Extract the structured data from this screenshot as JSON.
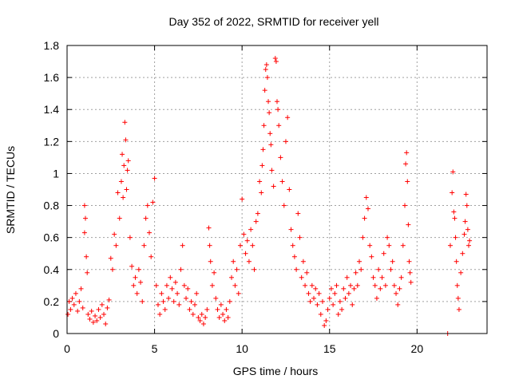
{
  "chart_data": {
    "type": "scatter",
    "title": "Day 352 of 2022, SRMTID for receiver yell",
    "xlabel": "GPS time / hours",
    "ylabel": "SRMTID / TECUs",
    "xlim": [
      0,
      24
    ],
    "ylim": [
      0,
      1.8
    ],
    "xticks": [
      0,
      5,
      10,
      15,
      20
    ],
    "xtick_labels": [
      "0",
      "5",
      "10",
      "15",
      "20"
    ],
    "yticks": [
      0,
      0.2,
      0.4,
      0.6,
      0.8,
      1.0,
      1.2,
      1.4,
      1.6,
      1.8
    ],
    "ytick_labels": [
      "0",
      "0.2",
      "0.4",
      "0.6",
      "0.8",
      "1",
      "1.2",
      "1.4",
      "1.6",
      "1.8"
    ],
    "grid": true,
    "marker": "+",
    "color": "#ff0000",
    "series": [
      {
        "name": "SRMTID",
        "points": [
          [
            0.05,
            0.12
          ],
          [
            0.12,
            0.2
          ],
          [
            0.2,
            0.15
          ],
          [
            0.3,
            0.22
          ],
          [
            0.4,
            0.18
          ],
          [
            0.5,
            0.25
          ],
          [
            0.6,
            0.14
          ],
          [
            0.7,
            0.2
          ],
          [
            0.8,
            0.28
          ],
          [
            0.9,
            0.16
          ],
          [
            1.0,
            0.63
          ],
          [
            1.0,
            0.8
          ],
          [
            1.05,
            0.72
          ],
          [
            1.1,
            0.48
          ],
          [
            1.15,
            0.38
          ],
          [
            1.2,
            0.12
          ],
          [
            1.3,
            0.09
          ],
          [
            1.4,
            0.14
          ],
          [
            1.5,
            0.07
          ],
          [
            1.6,
            0.11
          ],
          [
            1.7,
            0.08
          ],
          [
            1.8,
            0.15
          ],
          [
            1.9,
            0.1
          ],
          [
            2.0,
            0.18
          ],
          [
            2.1,
            0.12
          ],
          [
            2.2,
            0.06
          ],
          [
            2.3,
            0.16
          ],
          [
            2.4,
            0.21
          ],
          [
            2.5,
            0.47
          ],
          [
            2.6,
            0.4
          ],
          [
            2.7,
            0.62
          ],
          [
            2.8,
            0.55
          ],
          [
            2.9,
            0.88
          ],
          [
            3.0,
            0.72
          ],
          [
            3.1,
            0.95
          ],
          [
            3.15,
            1.12
          ],
          [
            3.2,
            0.85
          ],
          [
            3.25,
            1.05
          ],
          [
            3.3,
            1.32
          ],
          [
            3.35,
            1.21
          ],
          [
            3.4,
            0.9
          ],
          [
            3.45,
            1.02
          ],
          [
            3.5,
            1.08
          ],
          [
            3.6,
            0.6
          ],
          [
            3.7,
            0.42
          ],
          [
            3.8,
            0.3
          ],
          [
            3.9,
            0.35
          ],
          [
            4.0,
            0.25
          ],
          [
            4.1,
            0.4
          ],
          [
            4.2,
            0.32
          ],
          [
            4.3,
            0.2
          ],
          [
            4.4,
            0.55
          ],
          [
            4.5,
            0.72
          ],
          [
            4.6,
            0.8
          ],
          [
            4.7,
            0.63
          ],
          [
            4.8,
            0.48
          ],
          [
            4.9,
            0.82
          ],
          [
            5.0,
            0.97
          ],
          [
            5.1,
            0.3
          ],
          [
            5.2,
            0.18
          ],
          [
            5.3,
            0.12
          ],
          [
            5.4,
            0.25
          ],
          [
            5.5,
            0.2
          ],
          [
            5.6,
            0.15
          ],
          [
            5.7,
            0.3
          ],
          [
            5.8,
            0.22
          ],
          [
            5.9,
            0.35
          ],
          [
            6.0,
            0.28
          ],
          [
            6.1,
            0.2
          ],
          [
            6.2,
            0.32
          ],
          [
            6.3,
            0.25
          ],
          [
            6.4,
            0.18
          ],
          [
            6.5,
            0.4
          ],
          [
            6.6,
            0.55
          ],
          [
            6.7,
            0.3
          ],
          [
            6.8,
            0.22
          ],
          [
            6.9,
            0.28
          ],
          [
            7.0,
            0.15
          ],
          [
            7.1,
            0.2
          ],
          [
            7.2,
            0.12
          ],
          [
            7.3,
            0.18
          ],
          [
            7.4,
            0.25
          ],
          [
            7.5,
            0.1
          ],
          [
            7.6,
            0.08
          ],
          [
            7.7,
            0.12
          ],
          [
            7.8,
            0.06
          ],
          [
            7.9,
            0.1
          ],
          [
            8.0,
            0.15
          ],
          [
            8.1,
            0.66
          ],
          [
            8.15,
            0.55
          ],
          [
            8.2,
            0.45
          ],
          [
            8.3,
            0.3
          ],
          [
            8.4,
            0.38
          ],
          [
            8.5,
            0.22
          ],
          [
            8.6,
            0.15
          ],
          [
            8.7,
            0.1
          ],
          [
            8.8,
            0.18
          ],
          [
            8.9,
            0.12
          ],
          [
            9.0,
            0.08
          ],
          [
            9.1,
            0.15
          ],
          [
            9.2,
            0.1
          ],
          [
            9.3,
            0.2
          ],
          [
            9.4,
            0.35
          ],
          [
            9.5,
            0.45
          ],
          [
            9.6,
            0.3
          ],
          [
            9.7,
            0.4
          ],
          [
            9.8,
            0.25
          ],
          [
            9.9,
            0.55
          ],
          [
            10.0,
            0.84
          ],
          [
            10.1,
            0.62
          ],
          [
            10.2,
            0.5
          ],
          [
            10.3,
            0.58
          ],
          [
            10.4,
            0.45
          ],
          [
            10.5,
            0.65
          ],
          [
            10.6,
            0.55
          ],
          [
            10.7,
            0.4
          ],
          [
            10.8,
            0.7
          ],
          [
            10.9,
            0.75
          ],
          [
            11.0,
            0.95
          ],
          [
            11.1,
            0.88
          ],
          [
            11.15,
            1.05
          ],
          [
            11.2,
            1.15
          ],
          [
            11.25,
            1.3
          ],
          [
            11.3,
            1.52
          ],
          [
            11.35,
            1.65
          ],
          [
            11.4,
            1.68
          ],
          [
            11.45,
            1.6
          ],
          [
            11.5,
            1.45
          ],
          [
            11.55,
            1.38
          ],
          [
            11.6,
            1.25
          ],
          [
            11.65,
            1.18
          ],
          [
            11.7,
            1.02
          ],
          [
            11.8,
            0.92
          ],
          [
            11.9,
            1.72
          ],
          [
            11.95,
            1.7
          ],
          [
            12.0,
            1.45
          ],
          [
            12.05,
            1.4
          ],
          [
            12.1,
            1.3
          ],
          [
            12.2,
            1.1
          ],
          [
            12.3,
            0.95
          ],
          [
            12.4,
            0.8
          ],
          [
            12.5,
            1.2
          ],
          [
            12.6,
            1.35
          ],
          [
            12.7,
            0.9
          ],
          [
            12.8,
            0.65
          ],
          [
            12.9,
            0.55
          ],
          [
            13.0,
            0.48
          ],
          [
            13.1,
            0.4
          ],
          [
            13.2,
            0.75
          ],
          [
            13.3,
            0.6
          ],
          [
            13.4,
            0.35
          ],
          [
            13.5,
            0.45
          ],
          [
            13.6,
            0.3
          ],
          [
            13.7,
            0.38
          ],
          [
            13.8,
            0.25
          ],
          [
            13.9,
            0.2
          ],
          [
            14.0,
            0.3
          ],
          [
            14.1,
            0.22
          ],
          [
            14.2,
            0.28
          ],
          [
            14.3,
            0.18
          ],
          [
            14.4,
            0.25
          ],
          [
            14.5,
            0.12
          ],
          [
            14.6,
            0.2
          ],
          [
            14.7,
            0.05
          ],
          [
            14.8,
            0.08
          ],
          [
            14.9,
            0.15
          ],
          [
            15.0,
            0.22
          ],
          [
            15.1,
            0.28
          ],
          [
            15.2,
            0.18
          ],
          [
            15.3,
            0.25
          ],
          [
            15.4,
            0.3
          ],
          [
            15.5,
            0.12
          ],
          [
            15.6,
            0.2
          ],
          [
            15.7,
            0.15
          ],
          [
            15.8,
            0.28
          ],
          [
            15.9,
            0.22
          ],
          [
            16.0,
            0.35
          ],
          [
            16.1,
            0.25
          ],
          [
            16.2,
            0.3
          ],
          [
            16.3,
            0.18
          ],
          [
            16.4,
            0.28
          ],
          [
            16.5,
            0.38
          ],
          [
            16.6,
            0.3
          ],
          [
            16.7,
            0.45
          ],
          [
            16.8,
            0.4
          ],
          [
            16.9,
            0.6
          ],
          [
            17.0,
            0.72
          ],
          [
            17.1,
            0.85
          ],
          [
            17.2,
            0.78
          ],
          [
            17.3,
            0.55
          ],
          [
            17.4,
            0.48
          ],
          [
            17.5,
            0.35
          ],
          [
            17.6,
            0.3
          ],
          [
            17.7,
            0.22
          ],
          [
            17.8,
            0.4
          ],
          [
            17.9,
            0.28
          ],
          [
            18.0,
            0.35
          ],
          [
            18.1,
            0.5
          ],
          [
            18.2,
            0.3
          ],
          [
            18.3,
            0.6
          ],
          [
            18.4,
            0.55
          ],
          [
            18.5,
            0.4
          ],
          [
            18.6,
            0.45
          ],
          [
            18.7,
            0.3
          ],
          [
            18.8,
            0.25
          ],
          [
            18.9,
            0.18
          ],
          [
            19.0,
            0.28
          ],
          [
            19.1,
            0.35
          ],
          [
            19.2,
            0.55
          ],
          [
            19.3,
            0.8
          ],
          [
            19.35,
            1.06
          ],
          [
            19.4,
            1.13
          ],
          [
            19.45,
            0.95
          ],
          [
            19.5,
            0.68
          ],
          [
            19.55,
            0.45
          ],
          [
            19.6,
            0.38
          ],
          [
            19.65,
            0.32
          ],
          [
            21.75,
            0.0
          ],
          [
            21.9,
            0.55
          ],
          [
            22.0,
            0.88
          ],
          [
            22.05,
            1.01
          ],
          [
            22.1,
            0.76
          ],
          [
            22.15,
            0.72
          ],
          [
            22.2,
            0.6
          ],
          [
            22.25,
            0.45
          ],
          [
            22.3,
            0.3
          ],
          [
            22.35,
            0.22
          ],
          [
            22.4,
            0.15
          ],
          [
            22.5,
            0.38
          ],
          [
            22.6,
            0.5
          ],
          [
            22.7,
            0.62
          ],
          [
            22.75,
            0.7
          ],
          [
            22.8,
            0.87
          ],
          [
            22.85,
            0.8
          ],
          [
            22.9,
            0.65
          ],
          [
            22.95,
            0.55
          ],
          [
            23.0,
            0.58
          ]
        ]
      }
    ]
  }
}
